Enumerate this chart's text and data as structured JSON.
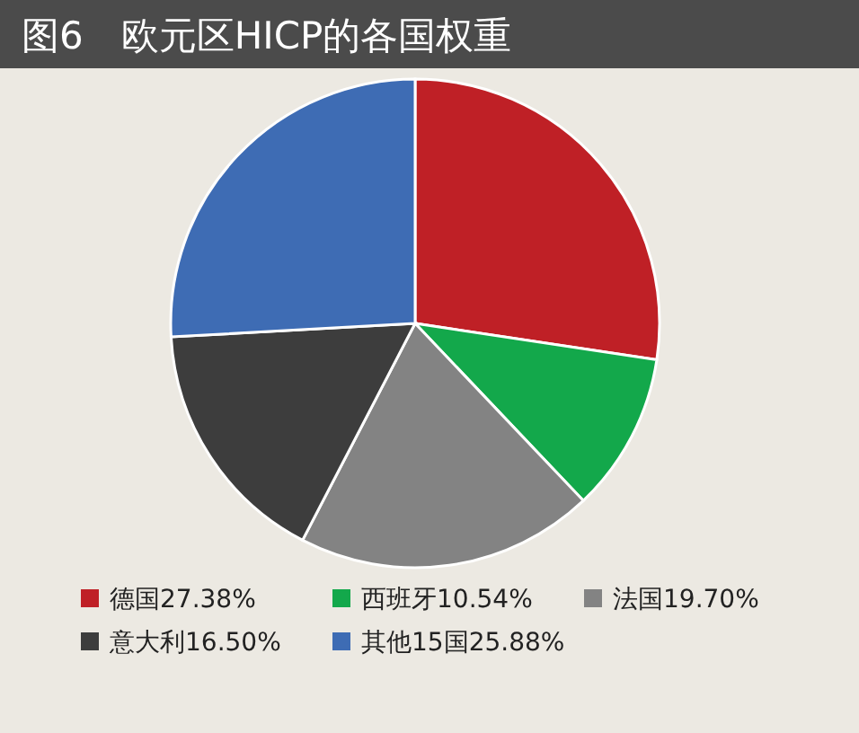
{
  "chart_data": {
    "type": "pie",
    "title": "图6　欧元区HICP的各国权重",
    "categories": [
      "德国",
      "西班牙",
      "法国",
      "意大利",
      "其他15国"
    ],
    "values": [
      27.38,
      10.54,
      19.7,
      16.5,
      25.88
    ],
    "value_labels": [
      "27.38%",
      "10.54%",
      "19.70%",
      "16.50%",
      "25.88%"
    ],
    "colors": [
      "#bf2026",
      "#13a84b",
      "#838383",
      "#3d3d3d",
      "#3e6cb4"
    ],
    "legend": "bottom"
  }
}
